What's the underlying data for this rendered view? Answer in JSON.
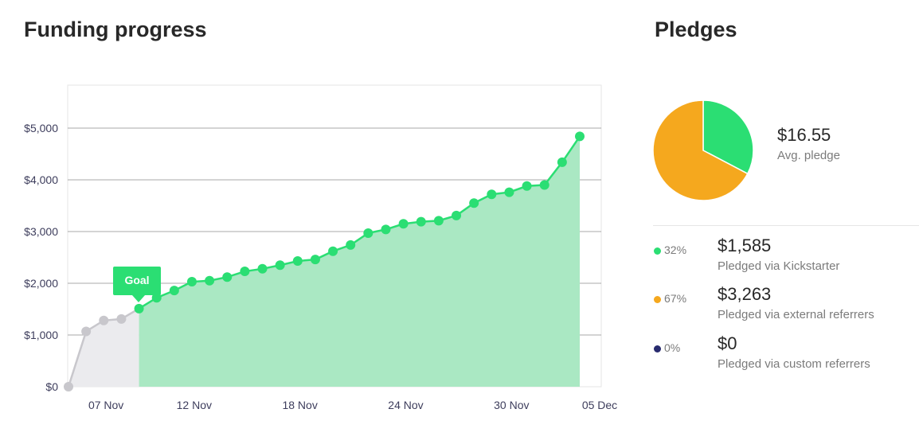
{
  "funding": {
    "title": "Funding progress",
    "goal_label": "Goal"
  },
  "pledges": {
    "title": "Pledges",
    "avg_value": "$16.55",
    "avg_label": "Avg. pledge",
    "rows": [
      {
        "pct": "32%",
        "amount": "$1,585",
        "label": "Pledged via Kickstarter",
        "color": "#2bde73"
      },
      {
        "pct": "67%",
        "amount": "$3,263",
        "label": "Pledged via external referrers",
        "color": "#f5a81e"
      },
      {
        "pct": "0%",
        "amount": "$0",
        "label": "Pledged via custom referrers",
        "color": "#282b6e"
      }
    ]
  },
  "chart_data": [
    {
      "type": "area",
      "x": [
        "06 Nov",
        "07 Nov",
        "08 Nov",
        "09 Nov",
        "10 Nov",
        "11 Nov",
        "12 Nov",
        "13 Nov",
        "14 Nov",
        "15 Nov",
        "16 Nov",
        "17 Nov",
        "18 Nov",
        "19 Nov",
        "20 Nov",
        "21 Nov",
        "22 Nov",
        "23 Nov",
        "24 Nov",
        "25 Nov",
        "26 Nov",
        "27 Nov",
        "28 Nov",
        "29 Nov",
        "30 Nov",
        "01 Dec",
        "02 Dec",
        "03 Dec",
        "04 Dec",
        "05 Dec"
      ],
      "values": [
        0,
        1070,
        1280,
        1310,
        1510,
        1720,
        1860,
        2030,
        2050,
        2120,
        2230,
        2280,
        2350,
        2430,
        2460,
        2620,
        2740,
        2970,
        3040,
        3150,
        3190,
        3210,
        3310,
        3550,
        3720,
        3760,
        3880,
        3900,
        4340,
        4840
      ],
      "goal_index": 4,
      "series_colors": {
        "before_goal": "#c8c7cc",
        "after_goal": "#2bde73",
        "area_before": "#ebebee",
        "area_after": "#aae8c3"
      },
      "y_ticks": [
        0,
        1000,
        2000,
        3000,
        4000,
        5000
      ],
      "y_tick_labels": [
        "$0",
        "$1,000",
        "$2,000",
        "$3,000",
        "$4,000",
        "$5,000"
      ],
      "x_tick_labels": [
        "07 Nov",
        "12 Nov",
        "18 Nov",
        "24 Nov",
        "30 Nov",
        "05 Dec"
      ],
      "x_tick_indices": [
        1,
        6,
        12,
        18,
        24,
        29
      ],
      "ylim": [
        0,
        5500
      ],
      "grid": true
    },
    {
      "type": "pie",
      "categories": [
        "Pledged via Kickstarter",
        "Pledged via external referrers",
        "Pledged via custom referrers"
      ],
      "values": [
        1585,
        3263,
        0
      ],
      "colors": [
        "#2bde73",
        "#f5a81e",
        "#282b6e"
      ]
    }
  ]
}
